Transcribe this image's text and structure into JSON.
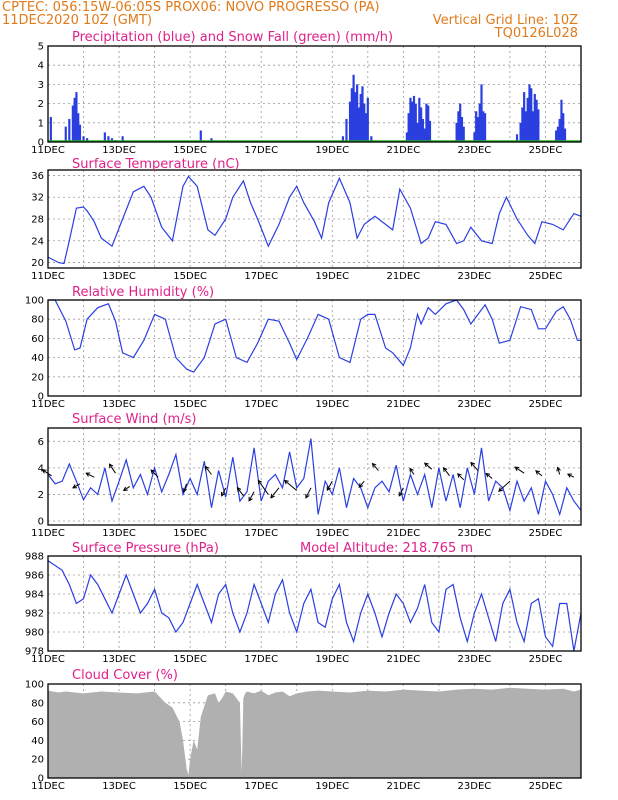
{
  "header": {
    "line1_left": "CPTEC:   056:15W-06:05S   PROX06: NOVO PROGRESSO (PA)",
    "line2_left": "11DEC2020 10Z (GMT)",
    "line2_right": "Vertical Grid Line: 10Z",
    "line3_right": "TQ0126L028"
  },
  "colors": {
    "header": "#e07a1a",
    "title": "#e0208a",
    "line": "#2b3fe0",
    "snow": "#22aa22",
    "cloud": "#b0b0b0"
  },
  "chart_data": [
    {
      "name": "precipitation",
      "type": "bar",
      "title": "Precipitation (blue) and Snow Fall (green) (mm/h)",
      "x_start": "11DEC",
      "x_days": 15,
      "xticks": [
        "11DEC",
        "13DEC",
        "15DEC",
        "17DEC",
        "19DEC",
        "21DEC",
        "23DEC",
        "25DEC"
      ],
      "yticks": [
        "0",
        "1",
        "2",
        "3",
        "4",
        "5"
      ],
      "ylim": [
        0,
        5
      ],
      "x": [
        0.08,
        0.5,
        0.6,
        0.7,
        0.75,
        0.8,
        0.85,
        0.9,
        1.0,
        1.1,
        1.6,
        1.7,
        1.8,
        1.9,
        2.1,
        4.3,
        4.6,
        8.3,
        8.4,
        8.5,
        8.55,
        8.6,
        8.65,
        8.7,
        8.75,
        8.8,
        8.85,
        8.9,
        8.95,
        9.0,
        9.1,
        10.1,
        10.15,
        10.2,
        10.25,
        10.3,
        10.35,
        10.4,
        10.45,
        10.5,
        10.55,
        10.6,
        10.65,
        10.7,
        10.75,
        11.5,
        11.55,
        11.6,
        11.65,
        11.7,
        12.0,
        12.05,
        12.1,
        12.15,
        12.2,
        12.25,
        12.3,
        13.2,
        13.3,
        13.35,
        13.4,
        13.45,
        13.5,
        13.55,
        13.6,
        13.65,
        13.7,
        13.75,
        13.8,
        14.3,
        14.35,
        14.4,
        14.45,
        14.5,
        14.55
      ],
      "values": [
        1.3,
        0.8,
        1.2,
        1.9,
        2.3,
        2.6,
        1.5,
        0.9,
        0.3,
        0.2,
        0.5,
        0.3,
        0.2,
        0.1,
        0.3,
        0.6,
        0.2,
        0.3,
        1.2,
        2.1,
        2.8,
        3.5,
        2.6,
        3.0,
        1.8,
        2.5,
        2.9,
        2.0,
        1.5,
        2.3,
        0.3,
        0.5,
        1.5,
        2.3,
        2.1,
        2.4,
        2.0,
        1.0,
        2.3,
        1.8,
        1.2,
        0.7,
        2.0,
        1.9,
        1.1,
        1.0,
        1.6,
        2.0,
        1.3,
        0.8,
        0.5,
        1.6,
        1.3,
        2.0,
        3.0,
        1.6,
        1.5,
        0.4,
        1.0,
        1.8,
        2.6,
        1.6,
        2.3,
        3.0,
        2.8,
        1.6,
        2.5,
        2.2,
        1.7,
        0.6,
        0.8,
        1.2,
        2.2,
        1.5,
        0.7
      ],
      "snow_values": 0
    },
    {
      "name": "temperature",
      "type": "line",
      "title": "Surface Temperature (nC)",
      "x_start": "11DEC",
      "x_days": 15,
      "xticks": [
        "11DEC",
        "13DEC",
        "15DEC",
        "17DEC",
        "19DEC",
        "21DEC",
        "23DEC",
        "25DEC"
      ],
      "yticks": [
        "20",
        "24",
        "28",
        "32",
        "36"
      ],
      "ylim": [
        19,
        37
      ],
      "x": [
        0,
        0.3,
        0.45,
        0.6,
        0.8,
        1.0,
        1.1,
        1.3,
        1.5,
        1.8,
        2.1,
        2.4,
        2.7,
        2.9,
        3.2,
        3.5,
        3.8,
        3.95,
        4.2,
        4.5,
        4.7,
        5.0,
        5.2,
        5.5,
        5.7,
        5.9,
        6.2,
        6.5,
        6.8,
        7.0,
        7.2,
        7.5,
        7.7,
        7.9,
        8.2,
        8.5,
        8.7,
        8.9,
        9.2,
        9.5,
        9.7,
        9.9,
        10.2,
        10.5,
        10.7,
        10.9,
        11.2,
        11.5,
        11.7,
        11.9,
        12.2,
        12.5,
        12.7,
        12.9,
        13.2,
        13.5,
        13.7,
        13.9,
        14.2,
        14.5,
        14.8,
        15.0
      ],
      "values": [
        21,
        20,
        19.8,
        24,
        30,
        30.2,
        29.5,
        27.5,
        24.5,
        23,
        28,
        33,
        34,
        32,
        26.5,
        24,
        34,
        35.8,
        34,
        26,
        25,
        28,
        32,
        35,
        31,
        28,
        23,
        27,
        32,
        34,
        31,
        27.5,
        24.5,
        31,
        35.5,
        31,
        24.5,
        27,
        28.5,
        27,
        26,
        33.5,
        30,
        23.5,
        24.5,
        27.5,
        27,
        23.5,
        24,
        26.5,
        24,
        23.5,
        29,
        32,
        28,
        25,
        23.5,
        27.5,
        27,
        26,
        29,
        28.5
      ]
    },
    {
      "name": "relative_humidity",
      "type": "line",
      "title": "Relative Humidity (%)",
      "x_start": "11DEC",
      "x_days": 15,
      "xticks": [
        "11DEC",
        "13DEC",
        "15DEC",
        "17DEC",
        "19DEC",
        "21DEC",
        "23DEC",
        "25DEC"
      ],
      "yticks": [
        "0",
        "20",
        "40",
        "60",
        "80",
        "100"
      ],
      "ylim": [
        0,
        100
      ],
      "x": [
        0,
        0.2,
        0.5,
        0.75,
        0.9,
        1.1,
        1.4,
        1.7,
        1.9,
        2.1,
        2.4,
        2.7,
        3.0,
        3.3,
        3.6,
        3.9,
        4.1,
        4.4,
        4.7,
        5.0,
        5.3,
        5.6,
        5.9,
        6.2,
        6.5,
        6.8,
        7.0,
        7.3,
        7.6,
        7.9,
        8.2,
        8.5,
        8.8,
        9.0,
        9.2,
        9.5,
        9.7,
        10.0,
        10.2,
        10.4,
        10.5,
        10.7,
        10.9,
        11.2,
        11.5,
        11.7,
        11.9,
        12.3,
        12.5,
        12.7,
        13.0,
        13.3,
        13.6,
        13.8,
        14.0,
        14.3,
        14.5,
        14.7,
        14.9,
        15.0
      ],
      "values": [
        100,
        100,
        78,
        48,
        50,
        80,
        92,
        96,
        78,
        45,
        40,
        58,
        85,
        80,
        40,
        28,
        25,
        40,
        75,
        80,
        40,
        35,
        55,
        80,
        78,
        55,
        38,
        60,
        85,
        80,
        40,
        35,
        80,
        85,
        85,
        50,
        45,
        32,
        50,
        85,
        75,
        92,
        85,
        96,
        100,
        90,
        75,
        95,
        80,
        55,
        58,
        93,
        90,
        70,
        70,
        88,
        93,
        80,
        58,
        58
      ]
    },
    {
      "name": "wind",
      "type": "line",
      "title": "Surface Wind (m/s)",
      "x_start": "11DEC",
      "x_days": 15,
      "xticks": [
        "11DEC",
        "13DEC",
        "15DEC",
        "17DEC",
        "19DEC",
        "21DEC",
        "23DEC",
        "25DEC"
      ],
      "yticks": [
        "0",
        "2",
        "4",
        "6"
      ],
      "ylim": [
        -0.3,
        7
      ],
      "x": [
        0,
        0.2,
        0.4,
        0.6,
        0.8,
        1.0,
        1.2,
        1.4,
        1.6,
        1.8,
        2.0,
        2.2,
        2.4,
        2.6,
        2.8,
        3.0,
        3.2,
        3.4,
        3.6,
        3.8,
        4.0,
        4.2,
        4.4,
        4.6,
        4.8,
        5.0,
        5.2,
        5.4,
        5.6,
        5.8,
        6.0,
        6.2,
        6.4,
        6.6,
        6.8,
        7.0,
        7.2,
        7.4,
        7.6,
        7.8,
        8.0,
        8.2,
        8.4,
        8.6,
        8.8,
        9.0,
        9.2,
        9.4,
        9.6,
        9.8,
        10.0,
        10.2,
        10.4,
        10.6,
        10.8,
        11.0,
        11.2,
        11.4,
        11.6,
        11.8,
        12.0,
        12.2,
        12.4,
        12.6,
        12.8,
        13.0,
        13.2,
        13.4,
        13.6,
        13.8,
        14.0,
        14.2,
        14.4,
        14.6,
        14.8,
        15.0
      ],
      "values": [
        3.5,
        2.8,
        3.0,
        4.3,
        3.0,
        1.6,
        2.5,
        2.0,
        4.0,
        1.5,
        3.0,
        4.6,
        2.5,
        3.5,
        2.0,
        4.0,
        2.2,
        3.5,
        5.0,
        2.0,
        3.2,
        2.0,
        4.5,
        1.0,
        3.8,
        1.8,
        4.8,
        1.5,
        2.2,
        5.5,
        1.5,
        3.0,
        3.5,
        2.5,
        5.2,
        2.5,
        3.2,
        6.2,
        0.5,
        3.0,
        2.0,
        4.0,
        1.0,
        3.2,
        2.5,
        1.0,
        2.5,
        3.0,
        2.2,
        4.2,
        1.5,
        3.5,
        2.0,
        3.5,
        1.0,
        4.0,
        1.5,
        3.5,
        1.0,
        4.0,
        2.0,
        5.5,
        1.5,
        3.0,
        2.5,
        0.8,
        3.0,
        1.5,
        2.5,
        0.5,
        3.0,
        2.0,
        0.5,
        2.5,
        1.5,
        0.8
      ],
      "arrows": [
        {
          "x": 0.1,
          "y": 3.4,
          "dx": -9,
          "dy": -6
        },
        {
          "x": 0.9,
          "y": 2.8,
          "dx": -7,
          "dy": 4
        },
        {
          "x": 1.3,
          "y": 3.3,
          "dx": -8,
          "dy": -4
        },
        {
          "x": 1.9,
          "y": 3.6,
          "dx": -6,
          "dy": -9
        },
        {
          "x": 2.3,
          "y": 2.6,
          "dx": -6,
          "dy": 4
        },
        {
          "x": 3.1,
          "y": 3.3,
          "dx": -7,
          "dy": -7
        },
        {
          "x": 3.9,
          "y": 2.8,
          "dx": -3,
          "dy": 8
        },
        {
          "x": 4.6,
          "y": 3.5,
          "dx": -6,
          "dy": -8
        },
        {
          "x": 5.0,
          "y": 2.5,
          "dx": -4,
          "dy": 8
        },
        {
          "x": 5.5,
          "y": 1.9,
          "dx": -6,
          "dy": -8
        },
        {
          "x": 5.8,
          "y": 2.2,
          "dx": -5,
          "dy": 9
        },
        {
          "x": 6.2,
          "y": 2.0,
          "dx": -10,
          "dy": -14
        },
        {
          "x": 6.5,
          "y": 2.5,
          "dx": -8,
          "dy": 10
        },
        {
          "x": 7.0,
          "y": 2.3,
          "dx": -12,
          "dy": -10
        },
        {
          "x": 7.4,
          "y": 2.5,
          "dx": -5,
          "dy": 10
        },
        {
          "x": 8.0,
          "y": 3.0,
          "dx": -5,
          "dy": 9
        },
        {
          "x": 8.9,
          "y": 3.0,
          "dx": -5,
          "dy": 6
        },
        {
          "x": 9.3,
          "y": 3.8,
          "dx": -6,
          "dy": -7
        },
        {
          "x": 10.0,
          "y": 2.5,
          "dx": -4,
          "dy": 8
        },
        {
          "x": 10.3,
          "y": 3.5,
          "dx": -4,
          "dy": -6
        },
        {
          "x": 10.8,
          "y": 3.9,
          "dx": -7,
          "dy": -6
        },
        {
          "x": 11.3,
          "y": 3.4,
          "dx": -6,
          "dy": -8
        },
        {
          "x": 11.7,
          "y": 3.1,
          "dx": -6,
          "dy": -6
        },
        {
          "x": 12.1,
          "y": 3.8,
          "dx": -7,
          "dy": -8
        },
        {
          "x": 12.5,
          "y": 3.2,
          "dx": -6,
          "dy": -5
        },
        {
          "x": 13.0,
          "y": 3.0,
          "dx": -11,
          "dy": 10
        },
        {
          "x": 13.4,
          "y": 3.6,
          "dx": -9,
          "dy": -6
        },
        {
          "x": 13.9,
          "y": 3.4,
          "dx": -6,
          "dy": -5
        },
        {
          "x": 14.4,
          "y": 3.5,
          "dx": -2,
          "dy": -7
        },
        {
          "x": 14.8,
          "y": 3.3,
          "dx": -6,
          "dy": -3
        }
      ]
    },
    {
      "name": "pressure",
      "type": "line",
      "title": "Surface Pressure (hPa)",
      "annotation": "Model Altitude: 218.765 m",
      "x_start": "11DEC",
      "x_days": 15,
      "xticks": [
        "11DEC",
        "13DEC",
        "15DEC",
        "17DEC",
        "19DEC",
        "21DEC",
        "23DEC",
        "25DEC"
      ],
      "yticks": [
        "978",
        "980",
        "982",
        "984",
        "986",
        "988"
      ],
      "ylim": [
        978,
        988
      ],
      "x": [
        0,
        0.2,
        0.4,
        0.6,
        0.8,
        1.0,
        1.2,
        1.4,
        1.6,
        1.8,
        2.0,
        2.2,
        2.4,
        2.6,
        2.8,
        3.0,
        3.2,
        3.4,
        3.6,
        3.8,
        4.0,
        4.2,
        4.4,
        4.6,
        4.8,
        5.0,
        5.2,
        5.4,
        5.6,
        5.8,
        6.0,
        6.2,
        6.4,
        6.6,
        6.8,
        7.0,
        7.2,
        7.4,
        7.6,
        7.8,
        8.0,
        8.2,
        8.4,
        8.6,
        8.8,
        9.0,
        9.2,
        9.4,
        9.6,
        9.8,
        10.0,
        10.2,
        10.4,
        10.6,
        10.8,
        11.0,
        11.2,
        11.4,
        11.6,
        11.8,
        12.0,
        12.2,
        12.4,
        12.6,
        12.8,
        13.0,
        13.2,
        13.4,
        13.6,
        13.8,
        14.0,
        14.2,
        14.4,
        14.6,
        14.8,
        15.0
      ],
      "values": [
        987.5,
        987,
        986.5,
        985,
        983,
        983.5,
        986,
        985,
        983.5,
        982,
        984,
        986,
        984,
        982,
        983,
        984.5,
        982,
        981.5,
        980,
        981,
        983,
        985,
        983,
        981,
        984,
        985,
        982,
        980,
        982,
        985,
        983,
        981,
        984,
        985.5,
        982,
        980,
        983,
        984.5,
        981,
        980.5,
        983.5,
        985,
        981,
        979,
        982,
        984,
        982,
        979.5,
        982,
        984,
        983,
        981,
        982.5,
        985,
        981,
        980,
        984.5,
        985,
        981.5,
        979,
        982,
        984,
        981.5,
        979,
        983,
        984.5,
        981,
        979,
        983,
        983.5,
        979.5,
        978.5,
        983,
        983,
        978,
        982
      ]
    },
    {
      "name": "cloud_cover",
      "type": "area",
      "title": "Cloud Cover (%)",
      "x_start": "11DEC",
      "x_days": 15,
      "xticks": [
        "11DEC",
        "13DEC",
        "15DEC",
        "17DEC",
        "19DEC",
        "21DEC",
        "23DEC",
        "25DEC"
      ],
      "yticks": [
        "0",
        "20",
        "40",
        "60",
        "80",
        "100"
      ],
      "ylim": [
        0,
        100
      ],
      "x": [
        0,
        0.3,
        0.5,
        1.0,
        1.5,
        2.0,
        2.5,
        3.0,
        3.3,
        3.5,
        3.7,
        3.8,
        3.9,
        3.95,
        4.0,
        4.1,
        4.2,
        4.3,
        4.5,
        4.7,
        4.8,
        4.9,
        5.0,
        5.2,
        5.4,
        5.45,
        5.5,
        5.55,
        5.6,
        5.8,
        6.0,
        6.2,
        6.4,
        6.6,
        6.8,
        7.0,
        7.3,
        7.6,
        8.0,
        8.5,
        9.0,
        9.5,
        10.0,
        10.5,
        11.0,
        11.5,
        12.0,
        12.5,
        13.0,
        13.5,
        14.0,
        14.5,
        14.8,
        15.0
      ],
      "values": [
        93,
        91,
        92,
        90,
        92,
        91,
        90,
        92,
        80,
        75,
        60,
        40,
        10,
        3,
        20,
        40,
        30,
        65,
        88,
        90,
        80,
        85,
        92,
        90,
        80,
        5,
        85,
        90,
        92,
        90,
        93,
        88,
        91,
        92,
        87,
        90,
        92,
        93,
        92,
        91,
        93,
        92,
        94,
        93,
        92,
        94,
        95,
        94,
        96,
        95,
        94,
        95,
        92,
        94
      ]
    }
  ]
}
